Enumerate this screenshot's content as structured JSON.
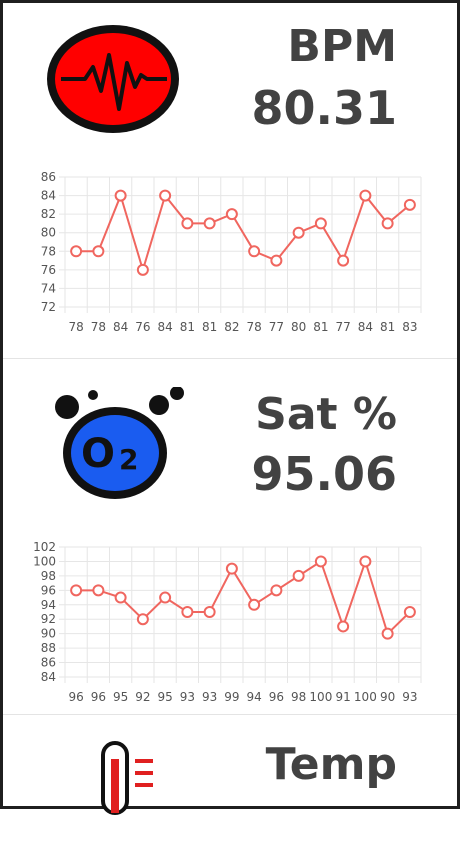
{
  "cards": [
    {
      "title": "BPM",
      "value": "80.31",
      "icon": "heartbeat-icon",
      "chart_data": {
        "type": "line",
        "categories": [
          "78",
          "78",
          "84",
          "76",
          "84",
          "81",
          "81",
          "82",
          "78",
          "77",
          "80",
          "81",
          "77",
          "84",
          "81",
          "83"
        ],
        "values": [
          78,
          78,
          84,
          76,
          84,
          81,
          81,
          82,
          78,
          77,
          80,
          81,
          77,
          84,
          81,
          83
        ],
        "yticks": [
          86,
          84,
          82,
          80,
          78,
          76,
          74,
          72
        ],
        "ylim": [
          72,
          86
        ]
      }
    },
    {
      "title": "Sat %",
      "value": "95.06",
      "icon": "oxygen-icon",
      "chart_data": {
        "type": "line",
        "categories": [
          "96",
          "96",
          "95",
          "92",
          "95",
          "93",
          "93",
          "99",
          "94",
          "96",
          "98",
          "100",
          "91",
          "100",
          "90",
          "93"
        ],
        "values": [
          96,
          96,
          95,
          92,
          95,
          93,
          93,
          99,
          94,
          96,
          98,
          100,
          91,
          100,
          90,
          93
        ],
        "yticks": [
          102,
          100,
          98,
          96,
          94,
          92,
          90,
          88,
          86,
          84
        ],
        "ylim": [
          84,
          102
        ]
      }
    },
    {
      "title": "Temp",
      "icon": "thermometer-icon"
    }
  ],
  "colors": {
    "line": "#f0665f",
    "heart_bg": "#ff0000",
    "oxygen_bg": "#1a5cf0",
    "text": "#424242"
  }
}
